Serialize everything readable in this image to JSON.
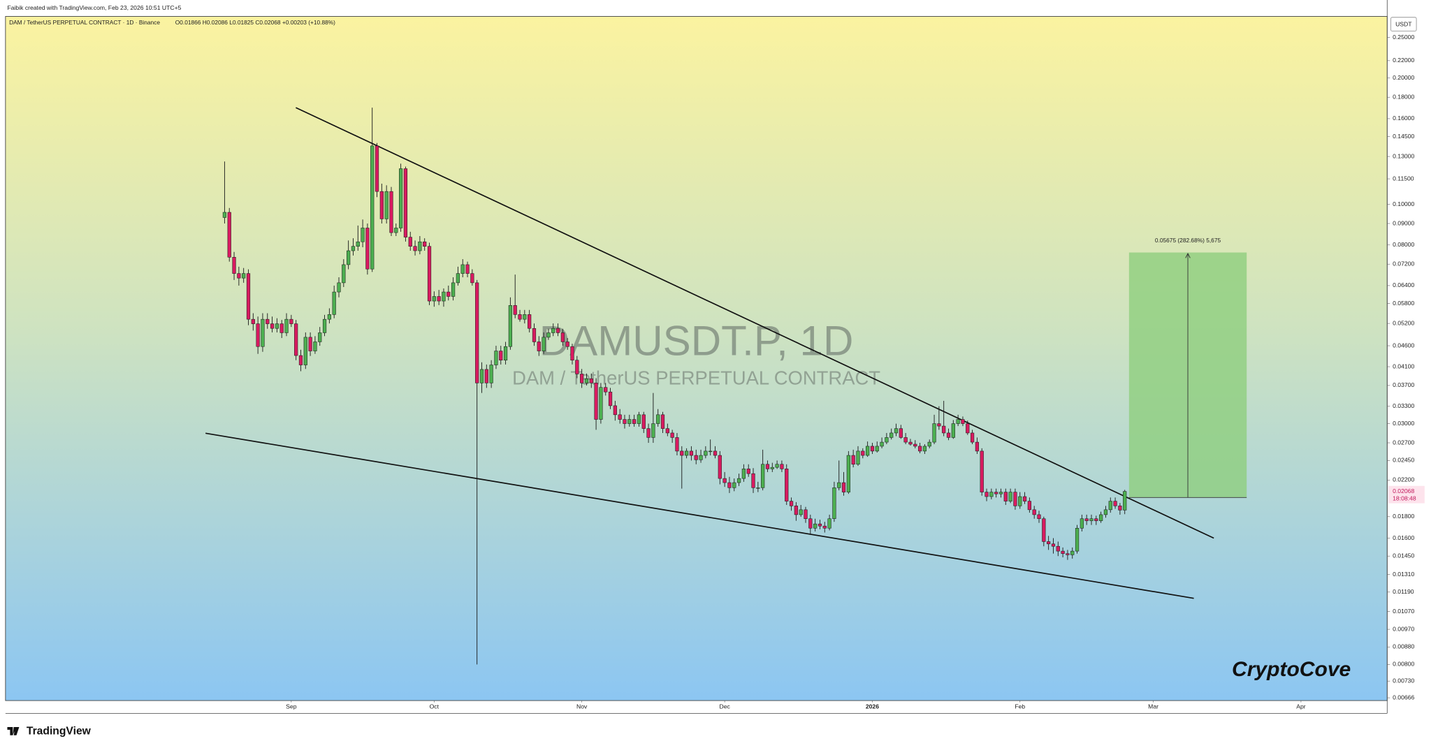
{
  "header": {
    "credit": "Faibik created with TradingView.com, Feb 23, 2026 10:51 UTC+5"
  },
  "chart_data": {
    "type": "candlestick",
    "legend_text": {
      "symbol": "DAM / TetherUS PERPETUAL CONTRACT · 1D · Binance",
      "ohlc": "O0.01866 H0.02086 L0.01825 C0.02068 +0.00203 (+10.88%)"
    },
    "watermark": {
      "title": "DAMUSDT.P, 1D",
      "subtitle": "DAM / TetherUS PERPETUAL CONTRACT"
    },
    "y_unit": "USDT",
    "log_scale": true,
    "grid": false,
    "up_color": "#4caf50",
    "down_color": "#d81b60",
    "x": [
      -14,
      -13,
      -12,
      -11,
      -10,
      -9,
      -8,
      -7,
      -6,
      -5,
      -4,
      -3,
      -2,
      -1,
      0,
      1,
      2,
      3,
      4,
      5,
      6,
      7,
      8,
      9,
      10,
      11,
      12,
      13,
      14,
      15,
      16,
      17,
      18,
      19,
      20,
      21,
      22,
      23,
      24,
      25,
      26,
      27,
      28,
      29,
      30,
      31,
      32,
      33,
      34,
      35,
      36,
      37,
      38,
      39,
      40,
      41,
      42,
      43,
      44,
      45,
      46,
      47,
      48,
      49,
      50,
      51,
      52,
      53,
      54,
      55,
      56,
      57,
      58,
      59,
      60,
      61,
      62,
      63,
      64,
      65,
      66,
      67,
      68,
      69,
      70,
      71,
      72,
      73,
      74,
      75,
      76,
      77,
      78,
      79,
      80,
      81,
      82,
      83,
      84,
      85,
      86,
      87,
      88,
      89,
      90,
      91,
      92,
      93,
      94,
      95,
      96,
      97,
      98,
      99,
      100,
      101,
      102,
      103,
      104,
      105,
      106,
      107,
      108,
      109,
      110,
      111,
      112,
      113,
      114,
      115,
      116,
      117,
      118,
      119,
      120,
      121,
      122,
      123,
      124,
      125,
      126,
      127,
      128,
      129,
      130,
      131,
      132,
      133,
      134,
      135,
      136,
      137,
      138,
      139,
      140,
      141,
      142,
      143,
      144,
      145,
      146,
      147,
      148,
      149,
      150,
      151,
      152,
      153,
      154,
      155,
      156,
      157,
      158,
      159,
      160,
      161,
      162,
      163,
      164,
      165,
      166,
      167,
      168,
      169,
      170,
      171,
      172,
      173,
      174,
      175
    ],
    "open": [
      0.093,
      0.0957,
      0.0748,
      0.0684,
      0.0667,
      0.0684,
      0.0532,
      0.0519,
      0.0458,
      0.0532,
      0.0519,
      0.0506,
      0.0519,
      0.0494,
      0.0532,
      0.0519,
      0.0436,
      0.0414,
      0.0482,
      0.0447,
      0.047,
      0.0494,
      0.0532,
      0.0546,
      0.0618,
      0.065,
      0.0718,
      0.0775,
      0.0794,
      0.0814,
      0.0878,
      0.0701,
      0.1378,
      0.1073,
      0.0923,
      0.1073,
      0.0856,
      0.0878,
      0.1216,
      0.0835,
      0.0794,
      0.0775,
      0.0814,
      0.0794,
      0.0588,
      0.0603,
      0.0588,
      0.0618,
      0.0603,
      0.065,
      0.0684,
      0.0718,
      0.0684,
      0.065,
      0.0375,
      0.0404,
      0.0375,
      0.0414,
      0.0447,
      0.0425,
      0.0458,
      0.0574,
      0.0546,
      0.0532,
      0.0546,
      0.0506,
      0.047,
      0.0447,
      0.0482,
      0.0494,
      0.0506,
      0.0494,
      0.047,
      0.0458,
      0.0425,
      0.0394,
      0.0375,
      0.0384,
      0.0375,
      0.0307,
      0.0366,
      0.0357,
      0.0331,
      0.0315,
      0.0307,
      0.03,
      0.0307,
      0.03,
      0.0315,
      0.0292,
      0.0278,
      0.03,
      0.0315,
      0.0292,
      0.0285,
      0.0278,
      0.0258,
      0.0252,
      0.0258,
      0.0252,
      0.0246,
      0.0252,
      0.0258,
      0.0258,
      0.0252,
      0.0222,
      0.0217,
      0.0211,
      0.0217,
      0.0222,
      0.0234,
      0.0228,
      0.0211,
      0.0211,
      0.024,
      0.0234,
      0.0236,
      0.024,
      0.0234,
      0.0196,
      0.0191,
      0.0182,
      0.0187,
      0.0178,
      0.0169,
      0.0173,
      0.0171,
      0.0169,
      0.0178,
      0.0211,
      0.0217,
      0.0206,
      0.0252,
      0.024,
      0.0258,
      0.0252,
      0.0265,
      0.0258,
      0.0265,
      0.0271,
      0.0278,
      0.0285,
      0.0292,
      0.0278,
      0.0271,
      0.0268,
      0.0265,
      0.0258,
      0.0265,
      0.0271,
      0.03,
      0.0296,
      0.0285,
      0.0278,
      0.03,
      0.0307,
      0.03,
      0.0285,
      0.0271,
      0.0258,
      0.0206,
      0.0201,
      0.0206,
      0.0204,
      0.0206,
      0.0196,
      0.0206,
      0.0191,
      0.0201,
      0.0196,
      0.0187,
      0.0182,
      0.0178,
      0.0157,
      0.0155,
      0.0153,
      0.0149,
      0.0147,
      0.0146,
      0.0149,
      0.0169,
      0.0178,
      0.0176,
      0.0178,
      0.0176,
      0.0182,
      0.0187,
      0.0196,
      0.0191,
      0.01866
    ],
    "high": [
      0.1265,
      0.098,
      0.077,
      0.071,
      0.0705,
      0.07,
      0.055,
      0.054,
      0.055,
      0.055,
      0.054,
      0.0535,
      0.053,
      0.055,
      0.0545,
      0.053,
      0.045,
      0.0495,
      0.0495,
      0.0485,
      0.051,
      0.0545,
      0.0565,
      0.064,
      0.067,
      0.074,
      0.082,
      0.083,
      0.089,
      0.092,
      0.09,
      0.17,
      0.14,
      0.112,
      0.111,
      0.11,
      0.09,
      0.125,
      0.123,
      0.086,
      0.082,
      0.084,
      0.083,
      0.081,
      0.062,
      0.0625,
      0.063,
      0.064,
      0.067,
      0.071,
      0.074,
      0.073,
      0.07,
      0.066,
      0.042,
      0.0415,
      0.0425,
      0.046,
      0.046,
      0.047,
      0.06,
      0.068,
      0.056,
      0.056,
      0.056,
      0.052,
      0.0485,
      0.0495,
      0.0505,
      0.052,
      0.052,
      0.0505,
      0.048,
      0.0465,
      0.0435,
      0.0405,
      0.0395,
      0.0395,
      0.0385,
      0.0375,
      0.0375,
      0.0365,
      0.034,
      0.0325,
      0.0315,
      0.0315,
      0.0315,
      0.032,
      0.032,
      0.03,
      0.0355,
      0.0325,
      0.032,
      0.03,
      0.029,
      0.0285,
      0.0265,
      0.0262,
      0.0265,
      0.026,
      0.026,
      0.0265,
      0.0275,
      0.0265,
      0.0258,
      0.023,
      0.0224,
      0.0222,
      0.0228,
      0.024,
      0.024,
      0.0235,
      0.0218,
      0.026,
      0.0245,
      0.0242,
      0.0245,
      0.0245,
      0.024,
      0.02,
      0.0195,
      0.0192,
      0.019,
      0.0182,
      0.0178,
      0.0177,
      0.0175,
      0.0182,
      0.0218,
      0.0245,
      0.023,
      0.0258,
      0.026,
      0.0265,
      0.0262,
      0.0272,
      0.027,
      0.0272,
      0.0278,
      0.0285,
      0.0292,
      0.03,
      0.0298,
      0.0285,
      0.0276,
      0.0274,
      0.027,
      0.0268,
      0.0275,
      0.0315,
      0.033,
      0.034,
      0.0292,
      0.0306,
      0.0315,
      0.0312,
      0.0305,
      0.029,
      0.0278,
      0.0262,
      0.021,
      0.021,
      0.021,
      0.021,
      0.021,
      0.021,
      0.021,
      0.0206,
      0.0206,
      0.02,
      0.0191,
      0.0186,
      0.018,
      0.0162,
      0.016,
      0.0157,
      0.0152,
      0.015,
      0.0152,
      0.0172,
      0.0182,
      0.0182,
      0.0182,
      0.0181,
      0.0185,
      0.0191,
      0.02,
      0.02,
      0.0194,
      0.02086
    ],
    "low": [
      0.09,
      0.073,
      0.066,
      0.064,
      0.065,
      0.0515,
      0.05,
      0.044,
      0.0445,
      0.0505,
      0.0495,
      0.0495,
      0.048,
      0.0485,
      0.051,
      0.0425,
      0.04,
      0.0405,
      0.0435,
      0.044,
      0.046,
      0.0485,
      0.052,
      0.0535,
      0.06,
      0.0635,
      0.07,
      0.0755,
      0.0775,
      0.079,
      0.068,
      0.069,
      0.104,
      0.09,
      0.09,
      0.084,
      0.084,
      0.086,
      0.0815,
      0.0775,
      0.0755,
      0.076,
      0.0775,
      0.0575,
      0.057,
      0.0575,
      0.057,
      0.059,
      0.059,
      0.064,
      0.067,
      0.067,
      0.064,
      0.008,
      0.0355,
      0.0365,
      0.0365,
      0.0405,
      0.0415,
      0.0415,
      0.045,
      0.0535,
      0.0525,
      0.052,
      0.0495,
      0.046,
      0.0435,
      0.044,
      0.0475,
      0.0485,
      0.0485,
      0.046,
      0.045,
      0.0415,
      0.0385,
      0.0365,
      0.037,
      0.0365,
      0.029,
      0.03,
      0.035,
      0.0325,
      0.0305,
      0.03,
      0.0292,
      0.0295,
      0.0295,
      0.0295,
      0.0285,
      0.027,
      0.027,
      0.0295,
      0.0285,
      0.028,
      0.027,
      0.0252,
      0.021,
      0.0248,
      0.0245,
      0.024,
      0.0242,
      0.0248,
      0.0252,
      0.0248,
      0.0215,
      0.0212,
      0.0205,
      0.0207,
      0.0213,
      0.0218,
      0.0224,
      0.0205,
      0.0206,
      0.0208,
      0.023,
      0.023,
      0.0234,
      0.023,
      0.0192,
      0.0186,
      0.0176,
      0.018,
      0.0174,
      0.0163,
      0.0166,
      0.0168,
      0.0165,
      0.0167,
      0.0175,
      0.0208,
      0.0202,
      0.0204,
      0.0236,
      0.0238,
      0.0248,
      0.025,
      0.0254,
      0.0256,
      0.0262,
      0.0268,
      0.0275,
      0.028,
      0.0276,
      0.0268,
      0.0266,
      0.0262,
      0.0255,
      0.0254,
      0.0262,
      0.0268,
      0.029,
      0.028,
      0.0274,
      0.0276,
      0.0296,
      0.0296,
      0.0282,
      0.0268,
      0.0254,
      0.0202,
      0.0196,
      0.0198,
      0.02,
      0.02,
      0.0192,
      0.0194,
      0.0187,
      0.0188,
      0.0193,
      0.0184,
      0.0178,
      0.0174,
      0.0153,
      0.015,
      0.0147,
      0.0145,
      0.0144,
      0.0142,
      0.0143,
      0.0147,
      0.0166,
      0.0172,
      0.0172,
      0.0172,
      0.0174,
      0.0179,
      0.0184,
      0.0188,
      0.0182,
      0.01825
    ],
    "close": [
      0.0957,
      0.0748,
      0.0684,
      0.0667,
      0.0684,
      0.0532,
      0.0519,
      0.0458,
      0.0532,
      0.0519,
      0.0506,
      0.0519,
      0.0494,
      0.0532,
      0.0519,
      0.0436,
      0.0414,
      0.0482,
      0.0447,
      0.047,
      0.0494,
      0.0532,
      0.0546,
      0.0618,
      0.065,
      0.0718,
      0.0775,
      0.0794,
      0.0814,
      0.0878,
      0.0701,
      0.1378,
      0.1073,
      0.0923,
      0.1073,
      0.0856,
      0.0878,
      0.1216,
      0.0835,
      0.0794,
      0.0775,
      0.0814,
      0.0794,
      0.0588,
      0.0603,
      0.0588,
      0.0618,
      0.0603,
      0.065,
      0.0684,
      0.0718,
      0.0684,
      0.065,
      0.0375,
      0.0404,
      0.0375,
      0.0414,
      0.0447,
      0.0425,
      0.0458,
      0.0574,
      0.0546,
      0.0532,
      0.0546,
      0.0506,
      0.047,
      0.0447,
      0.0482,
      0.0494,
      0.0506,
      0.0494,
      0.047,
      0.0458,
      0.0425,
      0.0394,
      0.0375,
      0.0384,
      0.0375,
      0.0307,
      0.0366,
      0.0357,
      0.0331,
      0.0315,
      0.0307,
      0.03,
      0.0307,
      0.03,
      0.0315,
      0.0292,
      0.0278,
      0.03,
      0.0315,
      0.0292,
      0.0285,
      0.0278,
      0.0258,
      0.0252,
      0.0258,
      0.0252,
      0.0246,
      0.0252,
      0.0258,
      0.0258,
      0.0252,
      0.0222,
      0.0217,
      0.0211,
      0.0217,
      0.0222,
      0.0234,
      0.0228,
      0.0211,
      0.0211,
      0.024,
      0.0234,
      0.0236,
      0.024,
      0.0234,
      0.0196,
      0.0191,
      0.0182,
      0.0187,
      0.0178,
      0.0169,
      0.0173,
      0.0171,
      0.0169,
      0.0178,
      0.0211,
      0.0217,
      0.0206,
      0.0252,
      0.024,
      0.0258,
      0.0252,
      0.0265,
      0.0258,
      0.0265,
      0.0271,
      0.0278,
      0.0285,
      0.0292,
      0.0278,
      0.0271,
      0.0268,
      0.0265,
      0.0258,
      0.0265,
      0.0271,
      0.03,
      0.0296,
      0.0285,
      0.0278,
      0.03,
      0.0307,
      0.03,
      0.0285,
      0.0271,
      0.0258,
      0.0206,
      0.0201,
      0.0206,
      0.0204,
      0.0206,
      0.0196,
      0.0206,
      0.0191,
      0.0201,
      0.0196,
      0.0187,
      0.0182,
      0.0178,
      0.0157,
      0.0155,
      0.0153,
      0.0149,
      0.0147,
      0.0146,
      0.0149,
      0.0169,
      0.0178,
      0.0176,
      0.0178,
      0.0176,
      0.0182,
      0.0187,
      0.0196,
      0.0191,
      0.01866,
      0.02068
    ],
    "xlim": [
      -60,
      230.1
    ],
    "xticks": [
      {
        "value": 0,
        "label": "Sep"
      },
      {
        "value": 30,
        "label": "Oct"
      },
      {
        "value": 61,
        "label": "Nov"
      },
      {
        "value": 91,
        "label": "Dec"
      },
      {
        "value": 122,
        "label": "2026",
        "bold": true
      },
      {
        "value": 153,
        "label": "Feb"
      },
      {
        "value": 181,
        "label": "Mar"
      },
      {
        "value": 212,
        "label": "Apr"
      }
    ],
    "ylim": [
      0.00656,
      0.2805
    ],
    "yticks": [
      {
        "value": 0.25,
        "label": "0.25000"
      },
      {
        "value": 0.22,
        "label": "0.22000"
      },
      {
        "value": 0.2,
        "label": "0.20000"
      },
      {
        "value": 0.18,
        "label": "0.18000"
      },
      {
        "value": 0.16,
        "label": "0.16000"
      },
      {
        "value": 0.145,
        "label": "0.14500"
      },
      {
        "value": 0.13,
        "label": "0.13000"
      },
      {
        "value": 0.115,
        "label": "0.11500"
      },
      {
        "value": 0.1,
        "label": "0.10000"
      },
      {
        "value": 0.09,
        "label": "0.09000"
      },
      {
        "value": 0.08,
        "label": "0.08000"
      },
      {
        "value": 0.072,
        "label": "0.07200"
      },
      {
        "value": 0.064,
        "label": "0.06400"
      },
      {
        "value": 0.058,
        "label": "0.05800"
      },
      {
        "value": 0.052,
        "label": "0.05200"
      },
      {
        "value": 0.046,
        "label": "0.04600"
      },
      {
        "value": 0.041,
        "label": "0.04100"
      },
      {
        "value": 0.037,
        "label": "0.03700"
      },
      {
        "value": 0.033,
        "label": "0.03300"
      },
      {
        "value": 0.03,
        "label": "0.03000"
      },
      {
        "value": 0.027,
        "label": "0.02700"
      },
      {
        "value": 0.0245,
        "label": "0.02450"
      },
      {
        "value": 0.022,
        "label": "0.02200"
      },
      {
        "value": 0.018,
        "label": "0.01800"
      },
      {
        "value": 0.016,
        "label": "0.01600"
      },
      {
        "value": 0.0145,
        "label": "0.01450"
      },
      {
        "value": 0.0131,
        "label": "0.01310"
      },
      {
        "value": 0.0119,
        "label": "0.01190"
      },
      {
        "value": 0.0107,
        "label": "0.01070"
      },
      {
        "value": 0.0097,
        "label": "0.00970"
      },
      {
        "value": 0.0088,
        "label": "0.00880"
      },
      {
        "value": 0.008,
        "label": "0.00800"
      },
      {
        "value": 0.0073,
        "label": "0.00730"
      },
      {
        "value": 0.00666,
        "label": "0.00666"
      }
    ],
    "last_price": {
      "value": 0.02068,
      "label": "0.02068",
      "countdown": "18:08:48"
    },
    "trendlines": [
      {
        "x": [
          0.96,
          193.7
        ],
        "y": [
          0.17,
          0.016
        ]
      },
      {
        "x": [
          -18,
          189.5
        ],
        "y": [
          0.02846,
          0.0115
        ]
      }
    ],
    "long_position": {
      "x": [
        175.9,
        200.6
      ],
      "entry": 0.02,
      "target": 0.07675,
      "label": "0.05675 (282.68%) 5,675",
      "color": "#8fce7e"
    }
  },
  "brand": {
    "signature": "CryptoCove",
    "logo": "TradingView"
  }
}
